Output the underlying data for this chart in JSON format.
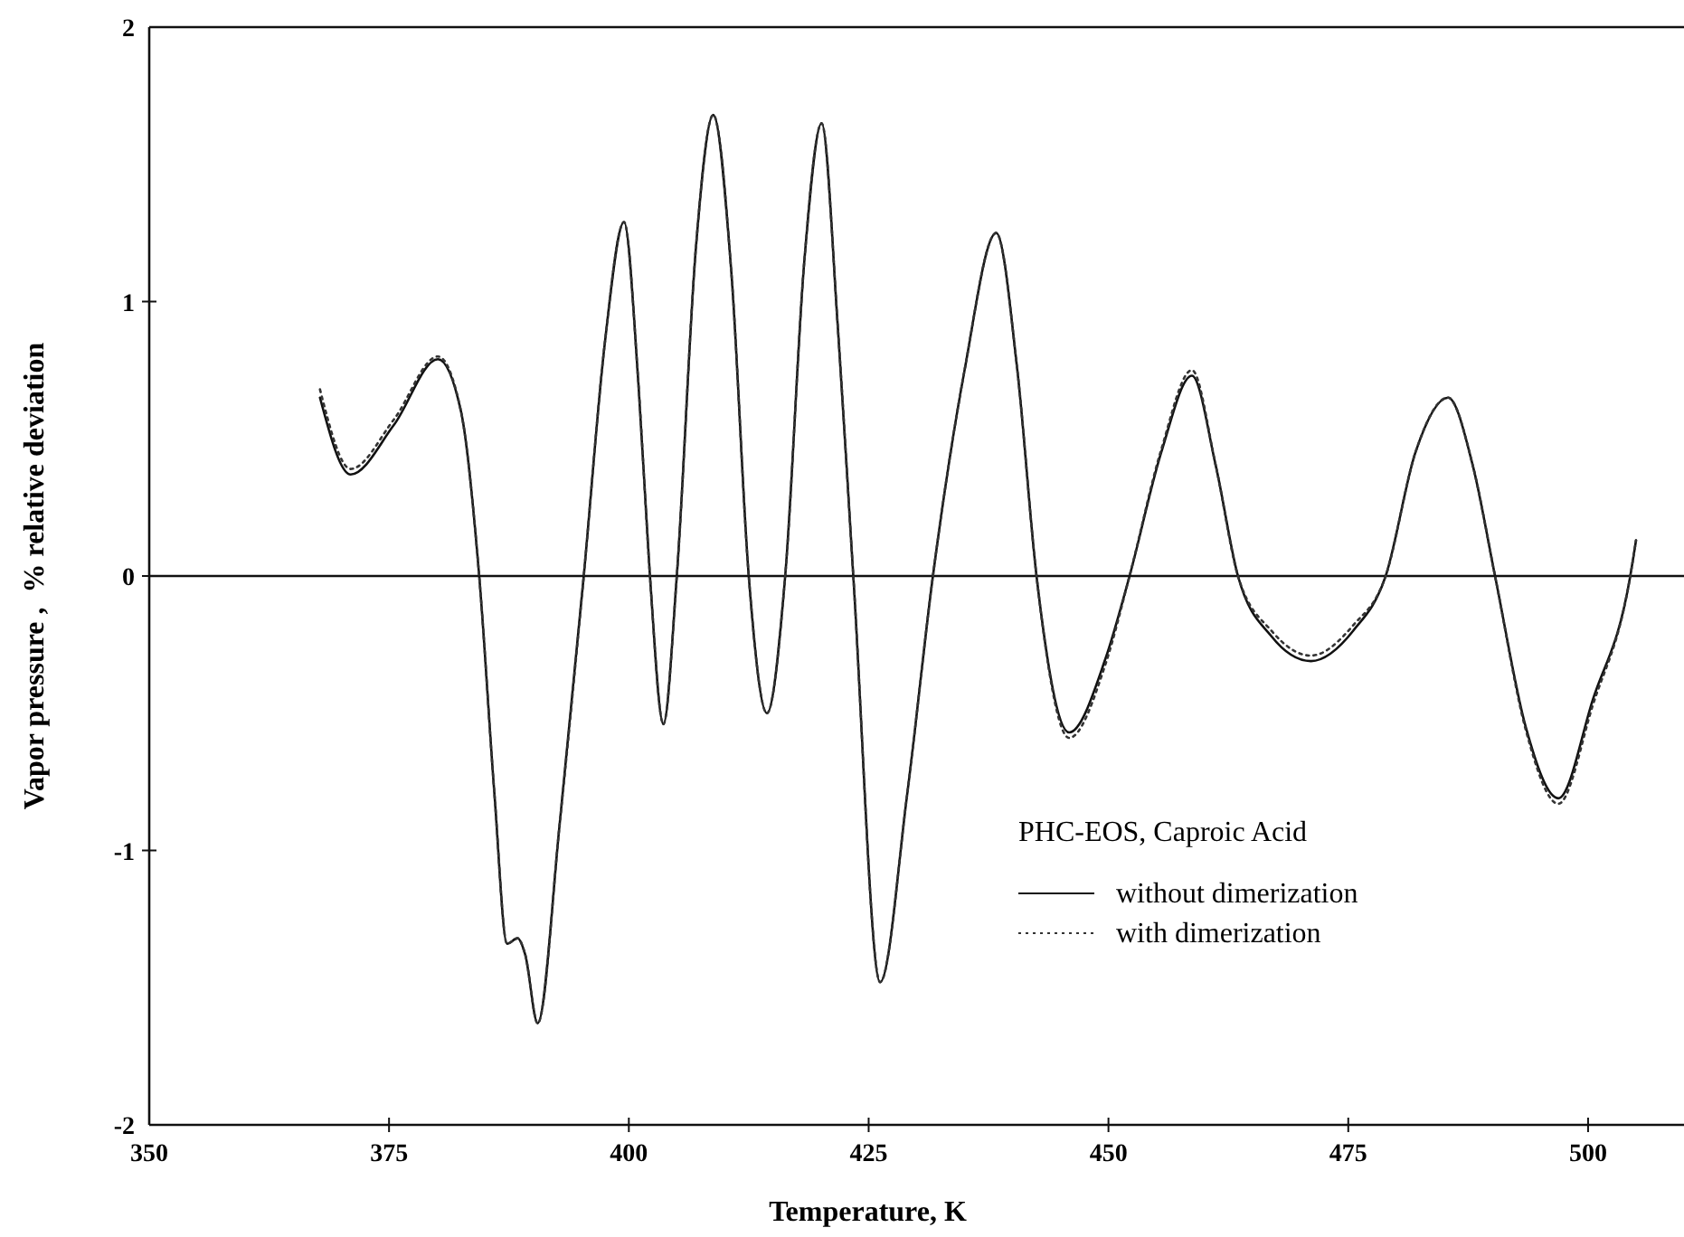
{
  "chart_data": {
    "type": "line",
    "xlabel": "Temperature, K",
    "ylabel": "Vapor pressure ,  % relative deviation",
    "legend_title": "PHC-EOS, Caproic Acid",
    "xlim": [
      350,
      510
    ],
    "xticks": [
      350,
      375,
      400,
      425,
      450,
      475,
      500
    ],
    "ylim": [
      -2,
      2
    ],
    "yticks": [
      -2,
      -1,
      0,
      1,
      2
    ],
    "x": [
      367.8,
      371.0,
      375.5,
      380.1,
      382.5,
      384.4,
      386.0,
      387.3,
      388.4,
      389.2,
      390.5,
      392.8,
      395.3,
      397.5,
      399.5,
      401.0,
      402.2,
      403.6,
      405.0,
      407.0,
      408.8,
      410.7,
      412.5,
      414.4,
      416.3,
      418.3,
      420.1,
      421.8,
      423.4,
      426.2,
      429.0,
      431.7,
      435.0,
      438.3,
      440.5,
      442.5,
      445.9,
      449.7,
      452.2,
      455.5,
      458.7,
      461.2,
      463.5,
      467.0,
      471.1,
      475.5,
      478.9,
      482.0,
      485.4,
      488.0,
      490.3,
      493.5,
      496.9,
      500.5,
      504.4,
      505.0
    ],
    "series": [
      {
        "name": "without dimerization",
        "color": "#111111",
        "line_style": "solid",
        "values": [
          0.65,
          0.37,
          0.55,
          0.79,
          0.6,
          0.0,
          -0.8,
          -1.34,
          -1.32,
          -1.38,
          -1.63,
          -0.9,
          0.0,
          0.85,
          1.29,
          0.7,
          0.0,
          -0.54,
          0.0,
          1.2,
          1.68,
          1.1,
          0.0,
          -0.5,
          0.0,
          1.15,
          1.65,
          0.9,
          0.0,
          -1.48,
          -0.8,
          0.0,
          0.75,
          1.25,
          0.75,
          0.0,
          -0.57,
          -0.3,
          0.0,
          0.45,
          0.73,
          0.4,
          0.0,
          -0.22,
          -0.31,
          -0.2,
          0.0,
          0.45,
          0.65,
          0.4,
          0.0,
          -0.55,
          -0.81,
          -0.45,
          0.0,
          0.13
        ]
      },
      {
        "name": "with dimerization",
        "color": "#333333",
        "line_style": "dotted",
        "values": [
          0.68,
          0.39,
          0.57,
          0.8,
          0.6,
          0.0,
          -0.8,
          -1.34,
          -1.32,
          -1.38,
          -1.63,
          -0.9,
          0.0,
          0.85,
          1.29,
          0.7,
          0.0,
          -0.54,
          0.0,
          1.2,
          1.68,
          1.1,
          0.0,
          -0.5,
          0.0,
          1.15,
          1.65,
          0.9,
          0.0,
          -1.48,
          -0.8,
          0.0,
          0.75,
          1.25,
          0.75,
          0.0,
          -0.59,
          -0.32,
          0.0,
          0.46,
          0.75,
          0.4,
          0.0,
          -0.2,
          -0.29,
          -0.18,
          0.0,
          0.45,
          0.65,
          0.4,
          0.0,
          -0.56,
          -0.83,
          -0.47,
          0.0,
          0.13
        ]
      }
    ],
    "ref_lines": [
      {
        "axis": "y",
        "value": 0
      }
    ],
    "legend": "bottom right",
    "grid": false,
    "marker": "none"
  }
}
